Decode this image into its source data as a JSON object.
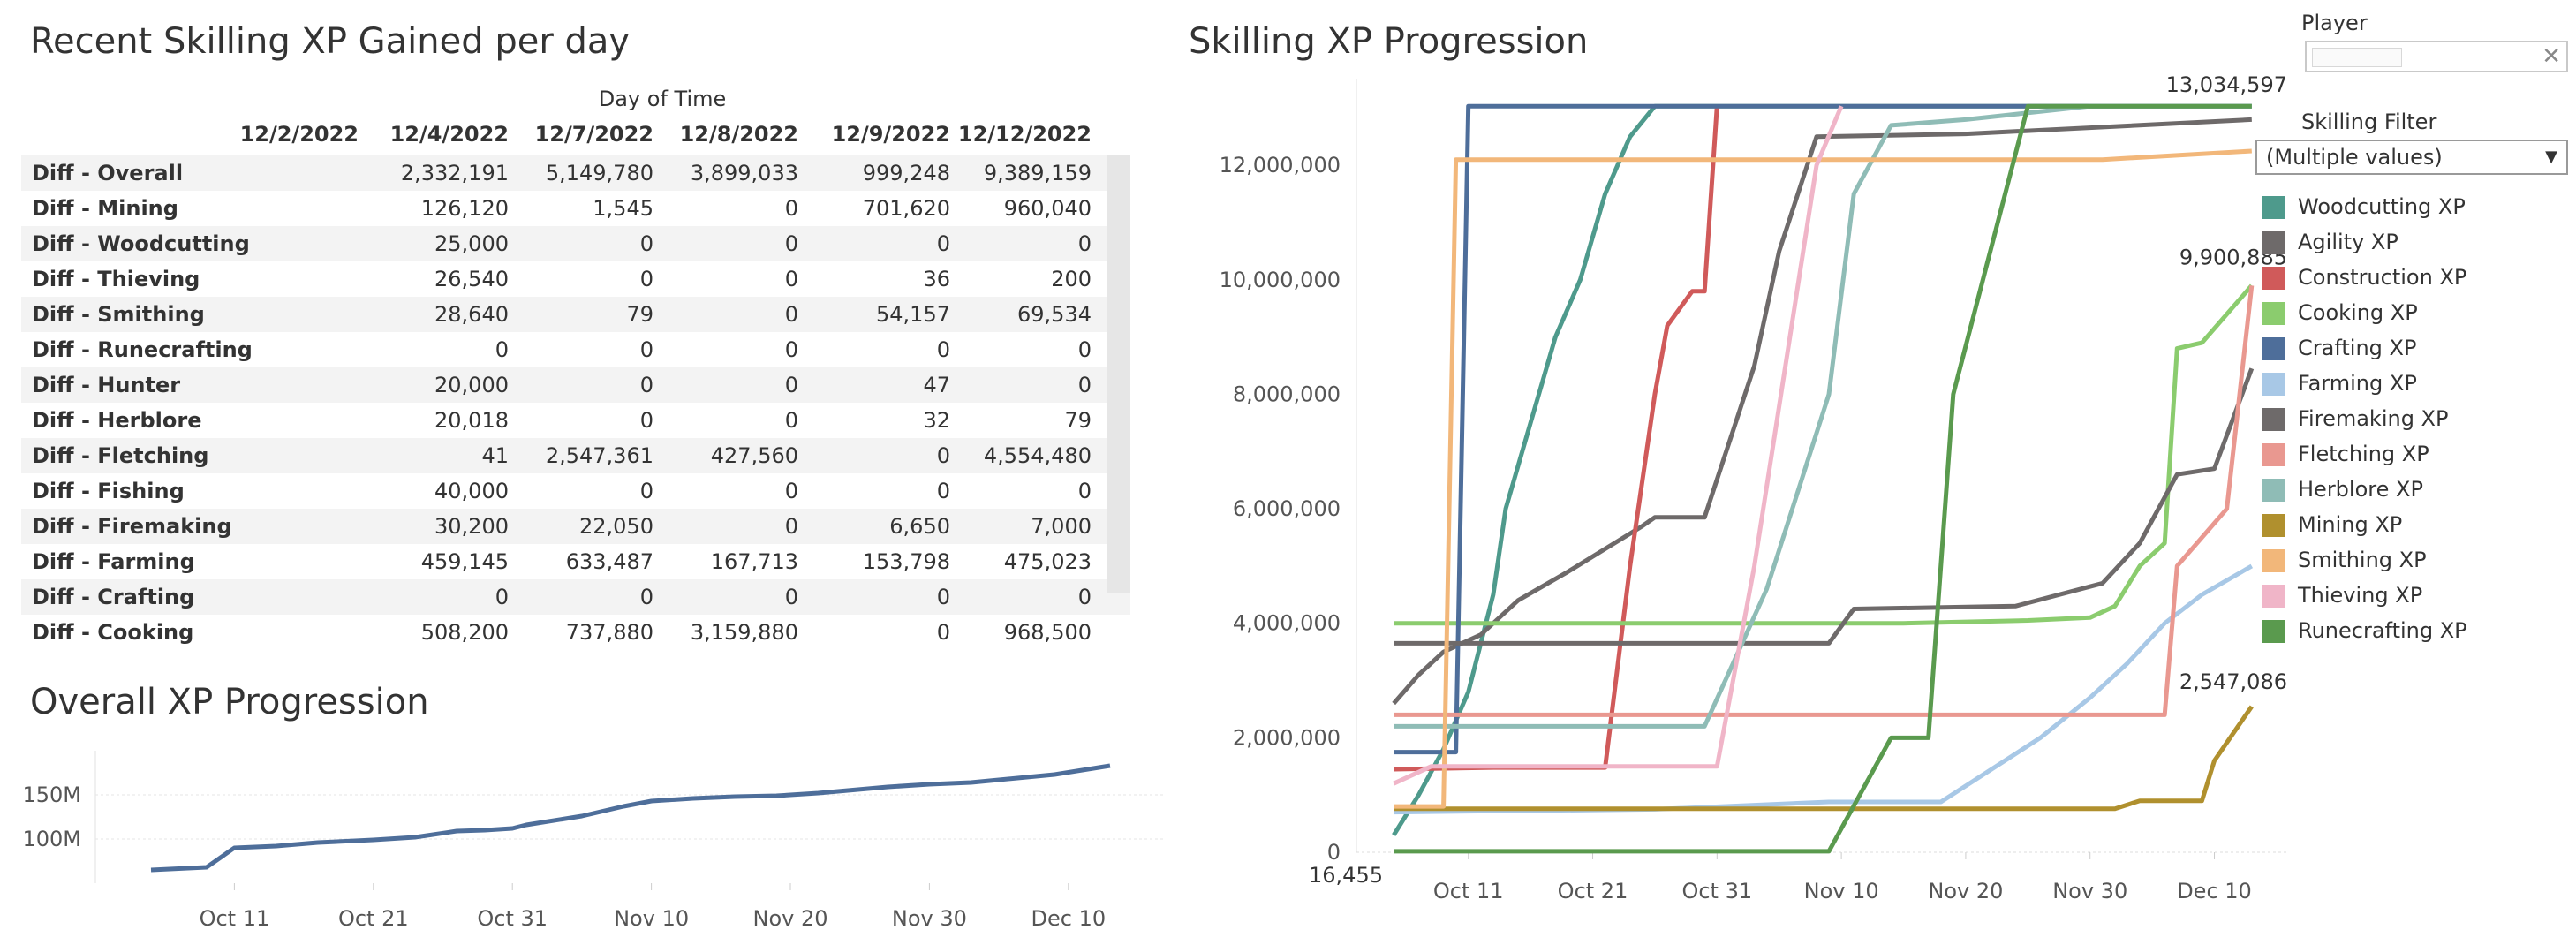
{
  "table": {
    "title": "Recent Skilling XP Gained per day",
    "column_caption": "Day of Time",
    "dates": [
      "12/2/2022",
      "12/4/2022",
      "12/7/2022",
      "12/8/2022",
      "12/9/2022",
      "12/12/2022"
    ],
    "rows": [
      {
        "label": "Diff - Overall",
        "values": [
          "",
          "2,332,191",
          "5,149,780",
          "3,899,033",
          "999,248",
          "9,389,159"
        ]
      },
      {
        "label": "Diff - Mining",
        "values": [
          "",
          "126,120",
          "1,545",
          "0",
          "701,620",
          "960,040"
        ]
      },
      {
        "label": "Diff - Woodcutting",
        "values": [
          "",
          "25,000",
          "0",
          "0",
          "0",
          "0"
        ]
      },
      {
        "label": "Diff - Thieving",
        "values": [
          "",
          "26,540",
          "0",
          "0",
          "36",
          "200"
        ]
      },
      {
        "label": "Diff - Smithing",
        "values": [
          "",
          "28,640",
          "79",
          "0",
          "54,157",
          "69,534"
        ]
      },
      {
        "label": "Diff - Runecrafting",
        "values": [
          "",
          "0",
          "0",
          "0",
          "0",
          "0"
        ]
      },
      {
        "label": "Diff - Hunter",
        "values": [
          "",
          "20,000",
          "0",
          "0",
          "47",
          "0"
        ]
      },
      {
        "label": "Diff - Herblore",
        "values": [
          "",
          "20,018",
          "0",
          "0",
          "32",
          "79"
        ]
      },
      {
        "label": "Diff - Fletching",
        "values": [
          "",
          "41",
          "2,547,361",
          "427,560",
          "0",
          "4,554,480"
        ]
      },
      {
        "label": "Diff - Fishing",
        "values": [
          "",
          "40,000",
          "0",
          "0",
          "0",
          "0"
        ]
      },
      {
        "label": "Diff - Firemaking",
        "values": [
          "",
          "30,200",
          "22,050",
          "0",
          "6,650",
          "7,000"
        ]
      },
      {
        "label": "Diff - Farming",
        "values": [
          "",
          "459,145",
          "633,487",
          "167,713",
          "153,798",
          "475,023"
        ]
      },
      {
        "label": "Diff - Crafting",
        "values": [
          "",
          "0",
          "0",
          "0",
          "0",
          "0"
        ]
      },
      {
        "label": "Diff - Cooking",
        "values": [
          "",
          "508,200",
          "737,880",
          "3,159,880",
          "0",
          "968,500"
        ]
      }
    ]
  },
  "overall_chart": {
    "title": "Overall XP Progression"
  },
  "skilling_chart": {
    "title": "Skilling XP Progression",
    "annotations": [
      "13,034,597",
      "9,900,885",
      "2,547,086",
      "16,455"
    ]
  },
  "filters": {
    "player_label": "Player",
    "player_value": "",
    "skilling_label": "Skilling Filter",
    "skilling_value": "(Multiple values)"
  },
  "chart_data": [
    {
      "type": "table",
      "title": "Recent Skilling XP Gained per day",
      "column_header": "Day of Time",
      "columns": [
        "12/2/2022",
        "12/4/2022",
        "12/7/2022",
        "12/8/2022",
        "12/9/2022",
        "12/12/2022"
      ]
    },
    {
      "type": "line",
      "title": "Overall XP Progression",
      "x_ticks": [
        "Oct 11",
        "Oct 21",
        "Oct 31",
        "Nov 10",
        "Nov 20",
        "Nov 30",
        "Dec 10"
      ],
      "y_ticks": [
        "100M",
        "150M"
      ],
      "ylim": [
        50000000,
        200000000
      ],
      "grid": true,
      "series": [
        {
          "color": "#4e6e9a",
          "points": [
            [
              "2022-10-05",
              65000000
            ],
            [
              "2022-10-09",
              68000000
            ],
            [
              "2022-10-11",
              90000000
            ],
            [
              "2022-10-14",
              92000000
            ],
            [
              "2022-10-17",
              96000000
            ],
            [
              "2022-10-21",
              99000000
            ],
            [
              "2022-10-24",
              102000000
            ],
            [
              "2022-10-27",
              109000000
            ],
            [
              "2022-10-29",
              110000000
            ],
            [
              "2022-10-31",
              112000000
            ],
            [
              "2022-11-01",
              116000000
            ],
            [
              "2022-11-05",
              126000000
            ],
            [
              "2022-11-08",
              137000000
            ],
            [
              "2022-11-10",
              143000000
            ],
            [
              "2022-11-13",
              146000000
            ],
            [
              "2022-11-16",
              148000000
            ],
            [
              "2022-11-19",
              149000000
            ],
            [
              "2022-11-22",
              152000000
            ],
            [
              "2022-11-27",
              159000000
            ],
            [
              "2022-11-30",
              162000000
            ],
            [
              "2022-12-03",
              164000000
            ],
            [
              "2022-12-05",
              167000000
            ],
            [
              "2022-12-07",
              170000000
            ],
            [
              "2022-12-09",
              173000000
            ],
            [
              "2022-12-11",
              178000000
            ],
            [
              "2022-12-13",
              183000000
            ]
          ]
        }
      ]
    },
    {
      "type": "line",
      "title": "Skilling XP Progression",
      "x_ticks": [
        "Oct 11",
        "Oct 21",
        "Oct 31",
        "Nov 10",
        "Nov 20",
        "Nov 30",
        "Dec 10"
      ],
      "y_ticks": [
        "0",
        "2,000,000",
        "4,000,000",
        "6,000,000",
        "8,000,000",
        "10,000,000",
        "12,000,000"
      ],
      "ylim": [
        0,
        13500000
      ],
      "legend": "right",
      "grid": false,
      "series": [
        {
          "name": "Woodcutting XP",
          "color": "#4e9a8c",
          "points": [
            [
              "2022-10-05",
              300000
            ],
            [
              "2022-10-07",
              1000000
            ],
            [
              "2022-10-09",
              1800000
            ],
            [
              "2022-10-10",
              2300000
            ],
            [
              "2022-10-11",
              2800000
            ],
            [
              "2022-10-13",
              4500000
            ],
            [
              "2022-10-14",
              6000000
            ],
            [
              "2022-10-16",
              7500000
            ],
            [
              "2022-10-18",
              9000000
            ],
            [
              "2022-10-20",
              10000000
            ],
            [
              "2022-10-22",
              11500000
            ],
            [
              "2022-10-24",
              12500000
            ],
            [
              "2022-10-26",
              13034597
            ],
            [
              "2022-12-13",
              13034597
            ]
          ]
        },
        {
          "name": "Agility XP",
          "color": "#6e6a6a",
          "points": [
            [
              "2022-10-05",
              2600000
            ],
            [
              "2022-10-07",
              3100000
            ],
            [
              "2022-10-09",
              3500000
            ],
            [
              "2022-10-12",
              3800000
            ],
            [
              "2022-10-15",
              4400000
            ],
            [
              "2022-10-19",
              4900000
            ],
            [
              "2022-10-22",
              5300000
            ],
            [
              "2022-10-25",
              5700000
            ],
            [
              "2022-10-26",
              5850000
            ],
            [
              "2022-10-30",
              5850000
            ],
            [
              "2022-11-03",
              8500000
            ],
            [
              "2022-11-05",
              10500000
            ],
            [
              "2022-11-08",
              12500000
            ],
            [
              "2022-11-20",
              12550000
            ],
            [
              "2022-12-13",
              12800000
            ]
          ]
        },
        {
          "name": "Construction XP",
          "color": "#d05a5a",
          "points": [
            [
              "2022-10-05",
              1450000
            ],
            [
              "2022-10-13",
              1480000
            ],
            [
              "2022-10-22",
              1480000
            ],
            [
              "2022-10-24",
              5000000
            ],
            [
              "2022-10-26",
              8000000
            ],
            [
              "2022-10-27",
              9200000
            ],
            [
              "2022-10-29",
              9800000
            ],
            [
              "2022-10-30",
              9800000
            ],
            [
              "2022-10-31",
              13034597
            ]
          ]
        },
        {
          "name": "Cooking XP",
          "color": "#8bcc6e",
          "points": [
            [
              "2022-10-05",
              4000000
            ],
            [
              "2022-11-15",
              4000000
            ],
            [
              "2022-11-25",
              4050000
            ],
            [
              "2022-11-30",
              4100000
            ],
            [
              "2022-12-02",
              4300000
            ],
            [
              "2022-12-04",
              5000000
            ],
            [
              "2022-12-06",
              5400000
            ],
            [
              "2022-12-07",
              8800000
            ],
            [
              "2022-12-09",
              8900000
            ],
            [
              "2022-12-13",
              9900885
            ]
          ]
        },
        {
          "name": "Crafting XP",
          "color": "#4e6e9a",
          "points": [
            [
              "2022-10-05",
              1750000
            ],
            [
              "2022-10-10",
              1750000
            ],
            [
              "2022-10-11",
              13034597
            ],
            [
              "2022-12-13",
              13034597
            ]
          ]
        },
        {
          "name": "Farming XP",
          "color": "#a8c8e6",
          "points": [
            [
              "2022-10-05",
              700000
            ],
            [
              "2022-10-26",
              750000
            ],
            [
              "2022-11-09",
              880000
            ],
            [
              "2022-11-18",
              880000
            ],
            [
              "2022-11-26",
              2000000
            ],
            [
              "2022-11-30",
              2700000
            ],
            [
              "2022-12-03",
              3300000
            ],
            [
              "2022-12-06",
              4000000
            ],
            [
              "2022-12-09",
              4500000
            ],
            [
              "2022-12-13",
              5000000
            ]
          ]
        },
        {
          "name": "Firemaking XP",
          "color": "#6e6a6a",
          "points": [
            [
              "2022-10-05",
              3650000
            ],
            [
              "2022-11-09",
              3650000
            ],
            [
              "2022-11-11",
              4250000
            ],
            [
              "2022-11-24",
              4300000
            ],
            [
              "2022-12-01",
              4700000
            ],
            [
              "2022-12-04",
              5400000
            ],
            [
              "2022-12-07",
              6600000
            ],
            [
              "2022-12-10",
              6700000
            ],
            [
              "2022-12-13",
              8450000
            ]
          ]
        },
        {
          "name": "Fletching XP",
          "color": "#e99890",
          "points": [
            [
              "2022-10-05",
              2400000
            ],
            [
              "2022-12-06",
              2400000
            ],
            [
              "2022-12-07",
              5000000
            ],
            [
              "2022-12-11",
              6000000
            ],
            [
              "2022-12-13",
              9900885
            ]
          ]
        },
        {
          "name": "Herblore XP",
          "color": "#8fbcb6",
          "points": [
            [
              "2022-10-05",
              2200000
            ],
            [
              "2022-10-30",
              2200000
            ],
            [
              "2022-11-04",
              4600000
            ],
            [
              "2022-11-09",
              8000000
            ],
            [
              "2022-11-11",
              11500000
            ],
            [
              "2022-11-14",
              12700000
            ],
            [
              "2022-11-20",
              12800000
            ],
            [
              "2022-11-30",
              13034597
            ],
            [
              "2022-12-13",
              13034597
            ]
          ]
        },
        {
          "name": "Mining XP",
          "color": "#b0902e",
          "points": [
            [
              "2022-10-05",
              760000
            ],
            [
              "2022-12-02",
              760000
            ],
            [
              "2022-12-04",
              900000
            ],
            [
              "2022-12-09",
              900000
            ],
            [
              "2022-12-10",
              1600000
            ],
            [
              "2022-12-13",
              2547086
            ]
          ]
        },
        {
          "name": "Smithing XP",
          "color": "#f2b77a",
          "points": [
            [
              "2022-10-05",
              800000
            ],
            [
              "2022-10-09",
              800000
            ],
            [
              "2022-10-10",
              12100000
            ],
            [
              "2022-12-01",
              12100000
            ],
            [
              "2022-12-13",
              12250000
            ]
          ]
        },
        {
          "name": "Thieving XP",
          "color": "#f0b5c8",
          "points": [
            [
              "2022-10-05",
              1200000
            ],
            [
              "2022-10-08",
              1500000
            ],
            [
              "2022-10-31",
              1500000
            ],
            [
              "2022-11-03",
              5000000
            ],
            [
              "2022-11-08",
              12000000
            ],
            [
              "2022-11-10",
              13034597
            ]
          ]
        },
        {
          "name": "Runecrafting XP",
          "color": "#5a9a4e",
          "points": [
            [
              "2022-10-05",
              16455
            ],
            [
              "2022-11-09",
              16455
            ],
            [
              "2022-11-14",
              2000000
            ],
            [
              "2022-11-17",
              2000000
            ],
            [
              "2022-11-19",
              8000000
            ],
            [
              "2022-11-25",
              13034597
            ],
            [
              "2022-12-13",
              13034597
            ]
          ]
        }
      ]
    }
  ]
}
